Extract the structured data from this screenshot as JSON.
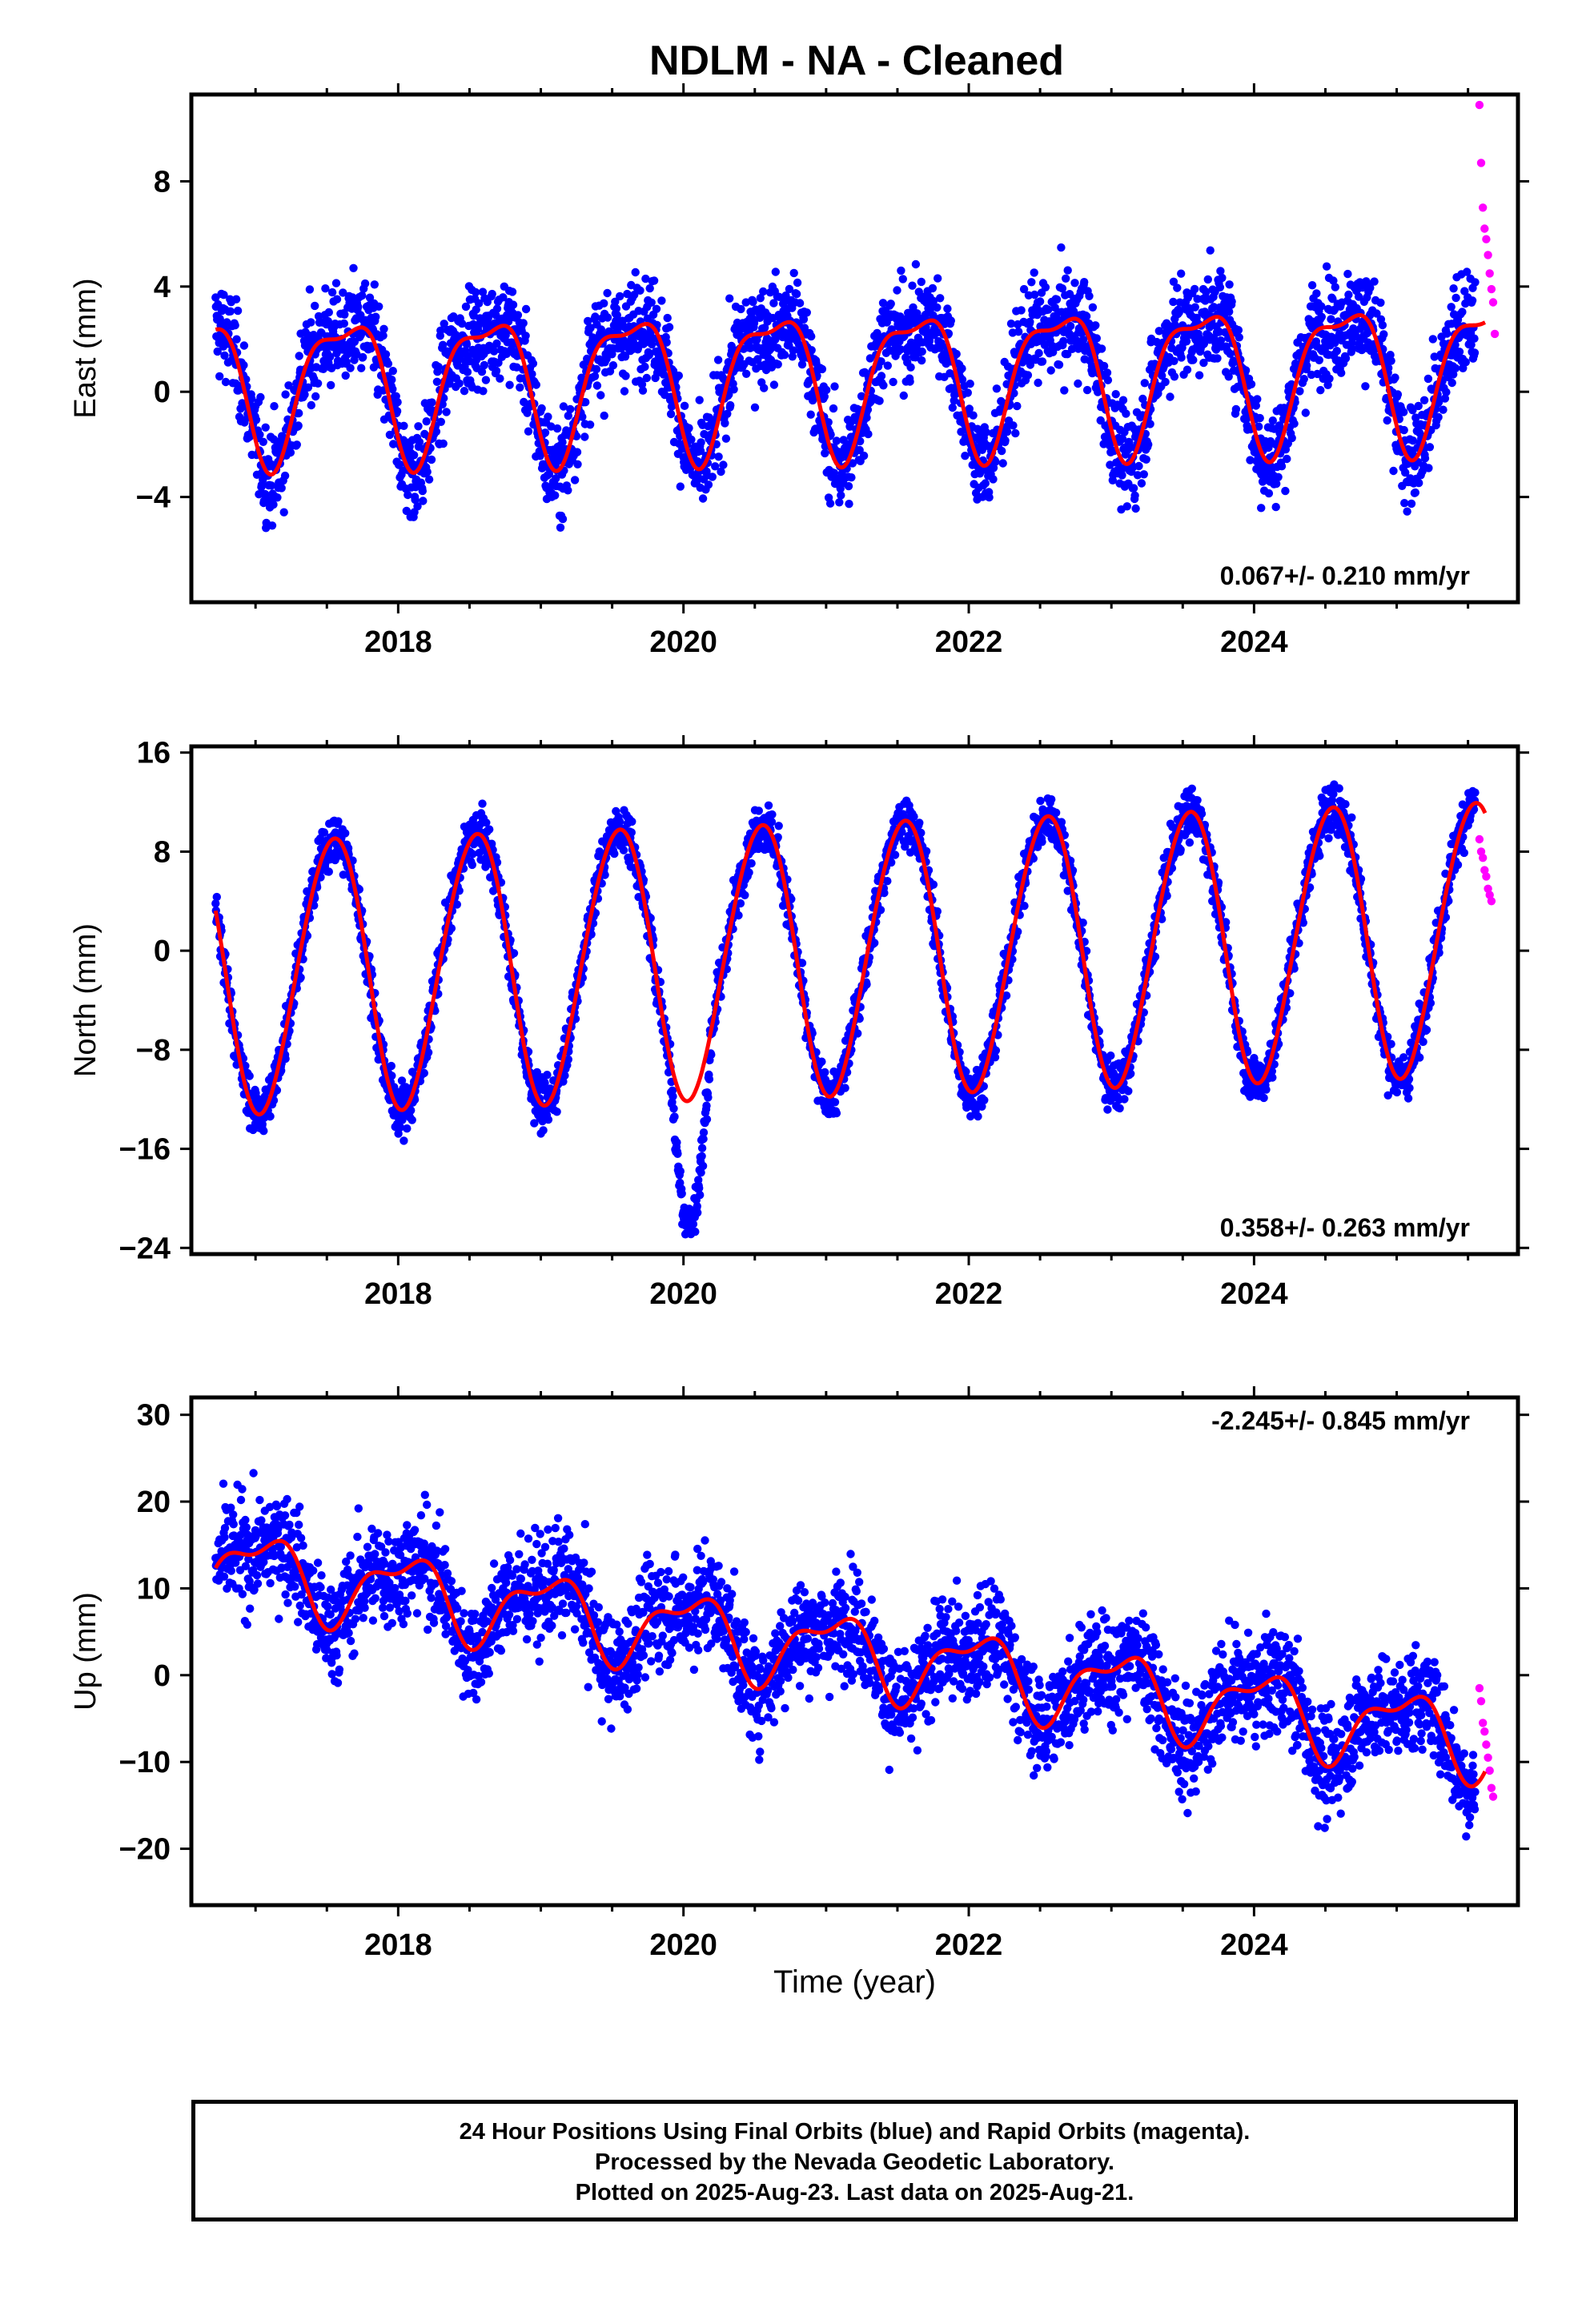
{
  "title": "NDLM  - NA - Cleaned",
  "x_label": "Time (year)",
  "footer": {
    "line1": "24 Hour Positions Using Final Orbits (blue) and Rapid Orbits (magenta).",
    "line2": "Processed by the Nevada Geodetic Laboratory.",
    "line3": "Plotted on 2025-Aug-23. Last data on 2025-Aug-21."
  },
  "colors": {
    "final": "#0000ff",
    "rapid": "#ff00ff",
    "model": "#ff0000",
    "axis": "#000000"
  },
  "chart_data": [
    {
      "type": "scatter",
      "name": "east",
      "ylabel": "East (mm)",
      "xlim": [
        2016.55,
        2025.85
      ],
      "ylim": [
        -8,
        11.3
      ],
      "xticks": [
        2018,
        2020,
        2022,
        2024
      ],
      "yticks": [
        -4,
        0,
        4,
        8
      ],
      "rate_label": "0.067+/- 0.210 mm/yr",
      "rate_position": "bottom-right",
      "model": {
        "offset": 0.6,
        "trend": 0.067,
        "annual_amp": 2.6,
        "annual_peak": 0.62,
        "semi_amp": 0.9,
        "semi_peak": 0.35,
        "noise": 1.3
      },
      "rapid_values": [
        10.9,
        8.7,
        7.0,
        6.2,
        5.8,
        5.2,
        4.5,
        3.9,
        3.4,
        2.2
      ]
    },
    {
      "type": "scatter",
      "name": "north",
      "ylabel": "North (mm)",
      "xlim": [
        2016.55,
        2025.85
      ],
      "ylim": [
        -24.5,
        16.5
      ],
      "xticks": [
        2018,
        2020,
        2022,
        2024
      ],
      "yticks": [
        -24,
        -16,
        -8,
        0,
        8,
        16
      ],
      "rate_label": "0.358+/- 0.263 mm/yr",
      "rate_position": "bottom-right",
      "model": {
        "offset": -0.5,
        "trend": 0.358,
        "annual_amp": 11.0,
        "annual_peak": 0.54,
        "semi_amp": 0.6,
        "semi_peak": 0.2,
        "noise": 1.4
      },
      "rapid_values": [
        9.0,
        8.0,
        7.5,
        6.5,
        6.0,
        5.0,
        4.5,
        4.0
      ]
    },
    {
      "type": "scatter",
      "name": "up",
      "ylabel": "Up (mm)",
      "xlim": [
        2016.55,
        2025.85
      ],
      "ylim": [
        -26.5,
        32
      ],
      "xticks": [
        2018,
        2020,
        2022,
        2024
      ],
      "yticks": [
        -20,
        -10,
        0,
        10,
        20,
        30
      ],
      "rate_label": "-2.245+/- 0.845 mm/yr",
      "rate_position": "top-right",
      "model": {
        "offset": 3.0,
        "trend": -2.245,
        "annual_amp": 4.0,
        "annual_peak": 0.05,
        "semi_amp": 1.8,
        "semi_peak": 0.25,
        "noise": 4.2
      },
      "rapid_values": [
        -1.5,
        -3.0,
        -5.5,
        -6.5,
        -8.0,
        -9.5,
        -11.0,
        -13.0,
        -14.0
      ]
    }
  ]
}
